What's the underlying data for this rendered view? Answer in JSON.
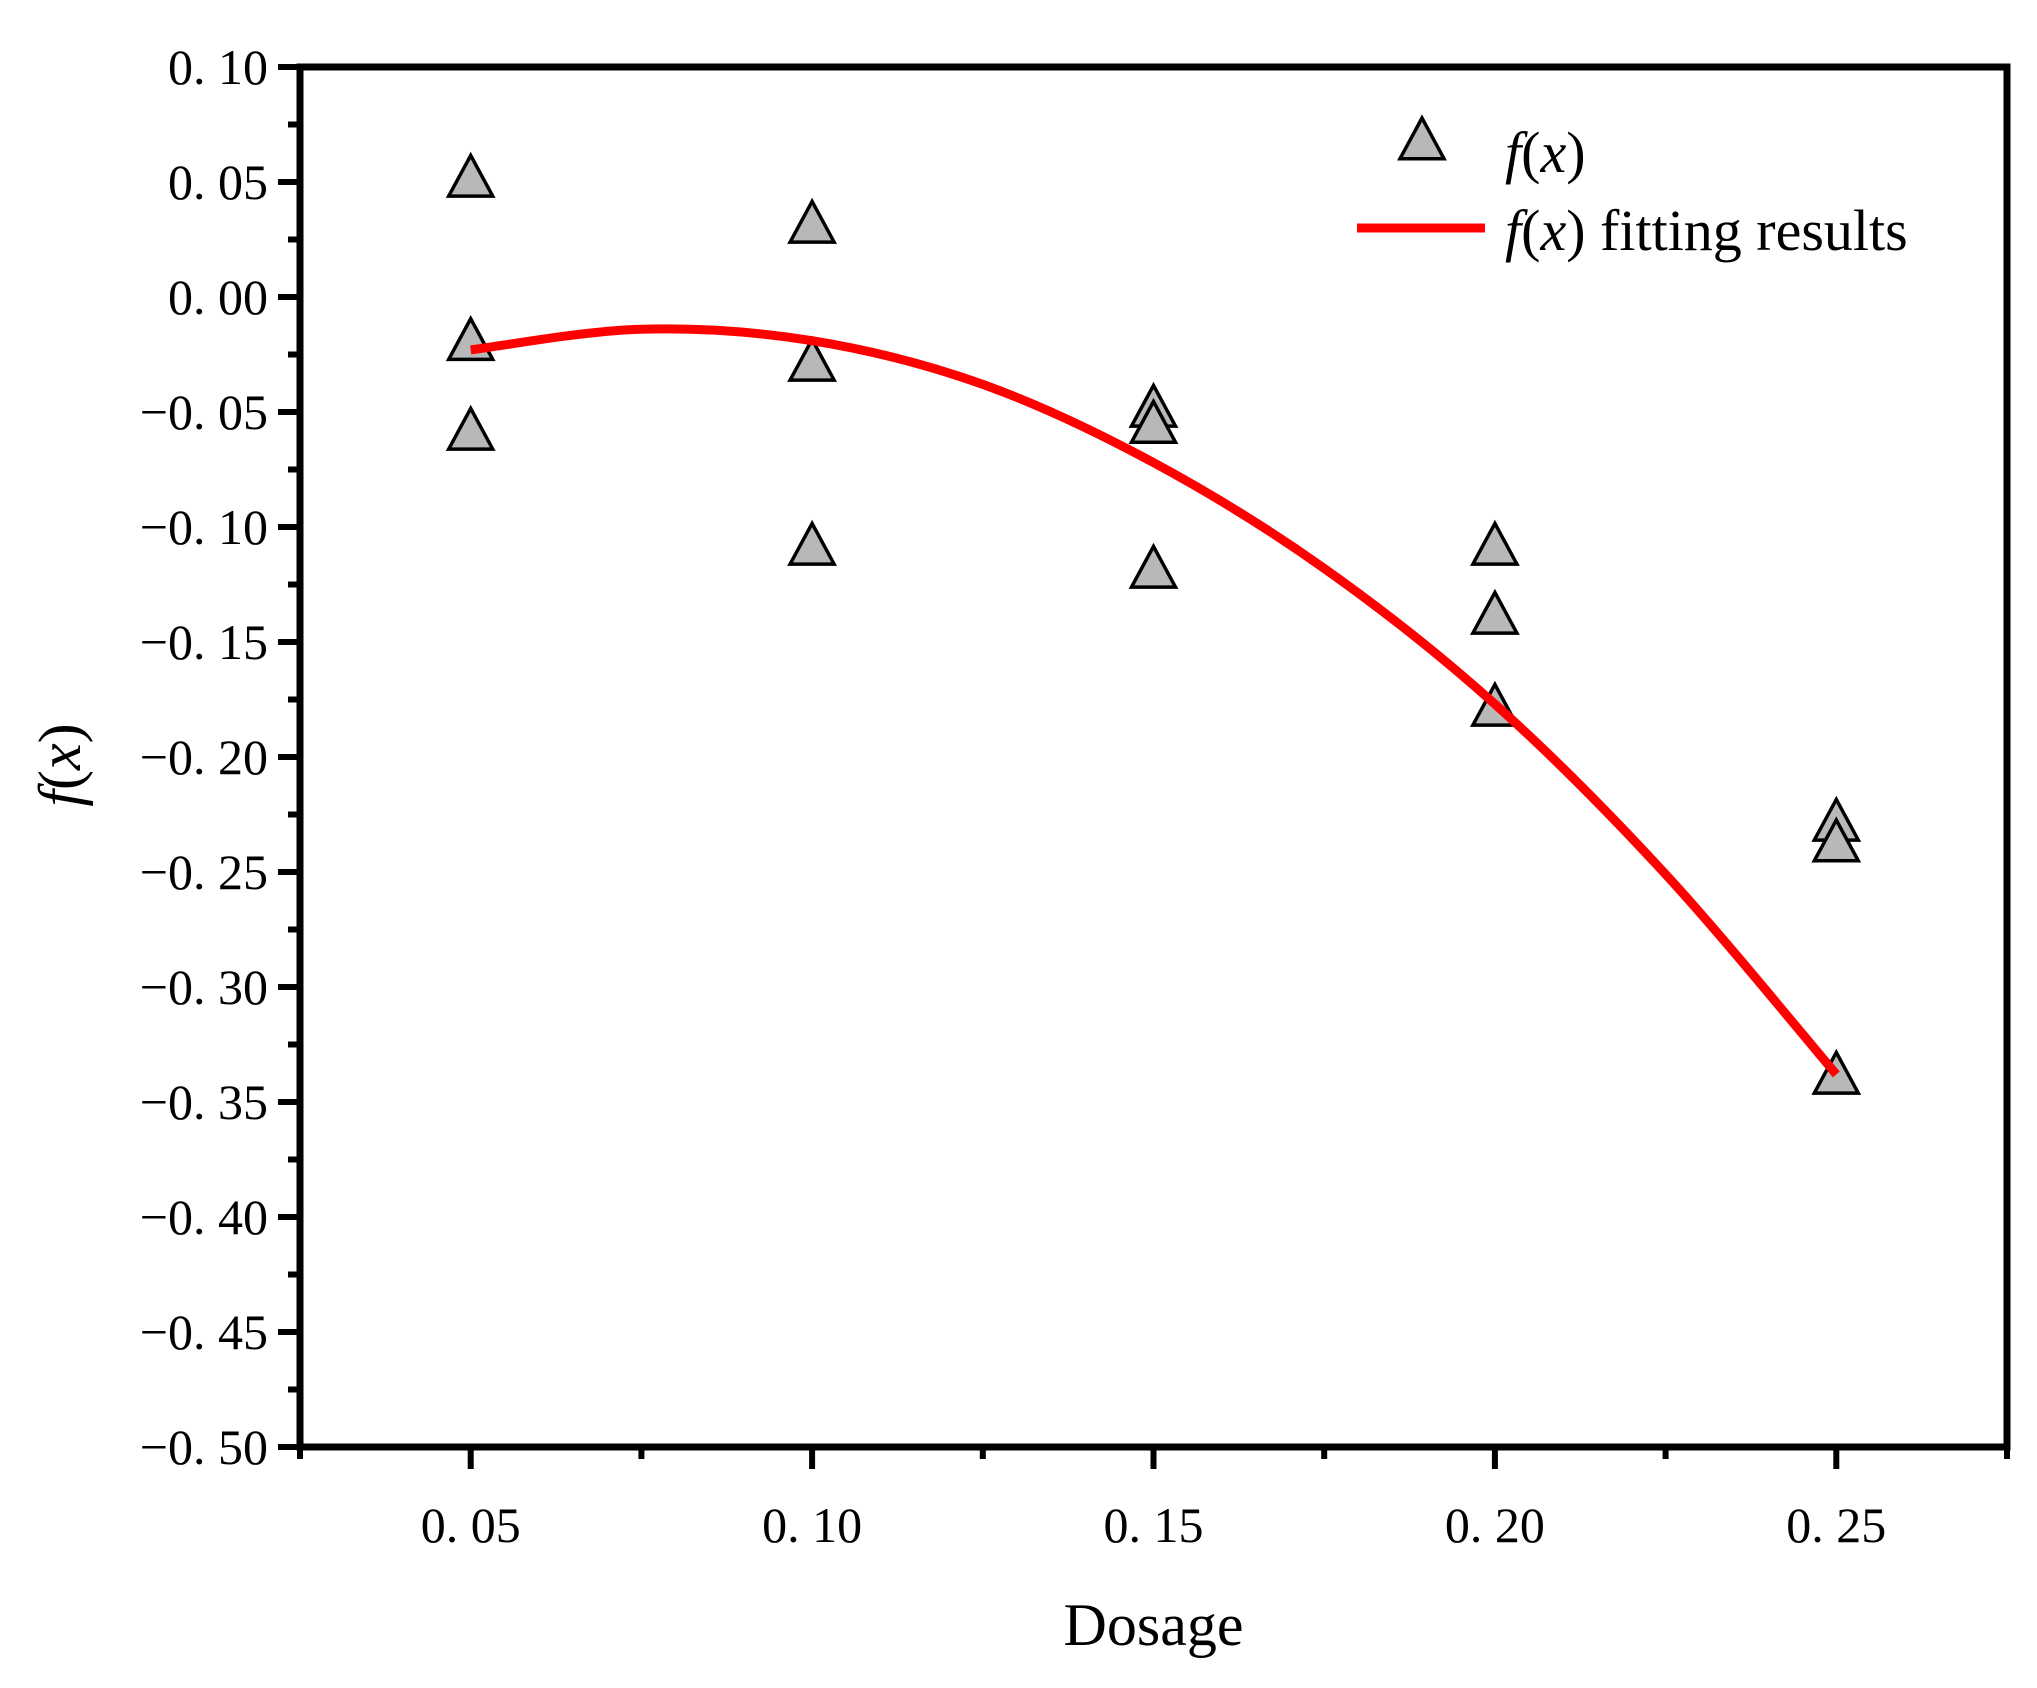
{
  "chart_data": {
    "type": "scatter",
    "title": "",
    "xlabel": "Dosage",
    "ylabel_func": "f",
    "ylabel_var": "x",
    "xlim": [
      0.025,
      0.275
    ],
    "ylim": [
      -0.5,
      0.1
    ],
    "x_ticks": [
      0.05,
      0.1,
      0.15,
      0.2,
      0.25
    ],
    "x_tick_labels": [
      "0. 05",
      "0. 10",
      "0. 15",
      "0. 20",
      "0. 25"
    ],
    "y_ticks": [
      0.1,
      0.05,
      0.0,
      -0.05,
      -0.1,
      -0.15,
      -0.2,
      -0.25,
      -0.3,
      -0.35,
      -0.4,
      -0.45,
      -0.5
    ],
    "y_tick_labels": [
      "0. 10",
      "0. 05",
      "0. 00",
      "−0. 05",
      "−0. 10",
      "−0. 15",
      "−0. 20",
      "−0. 25",
      "−0. 30",
      "−0. 35",
      "−0. 40",
      "−0. 45",
      "−0. 50"
    ],
    "grid": false,
    "legend_position": "top-right",
    "series": [
      {
        "name": "f(x)",
        "kind": "scatter",
        "marker": "triangle",
        "color": "#b8b8b8",
        "x": [
          0.05,
          0.05,
          0.05,
          0.1,
          0.1,
          0.1,
          0.15,
          0.15,
          0.15,
          0.2,
          0.2,
          0.2,
          0.25,
          0.25,
          0.25
        ],
        "y": [
          0.052,
          -0.019,
          -0.058,
          0.032,
          -0.028,
          -0.108,
          -0.048,
          -0.055,
          -0.118,
          -0.108,
          -0.138,
          -0.178,
          -0.228,
          -0.237,
          -0.338
        ]
      },
      {
        "name": "f(x) fitting results",
        "kind": "line",
        "color": "#ff0000",
        "x": [
          0.05,
          0.075,
          0.1,
          0.125,
          0.15,
          0.175,
          0.2,
          0.225,
          0.25
        ],
        "y": [
          -0.023,
          -0.014,
          -0.019,
          -0.038,
          -0.072,
          -0.118,
          -0.177,
          -0.251,
          -0.338
        ]
      }
    ],
    "legend": [
      {
        "func": "f",
        "var": "x",
        "suffix": ""
      },
      {
        "func": "f",
        "var": "x",
        "suffix": " fitting results"
      }
    ]
  }
}
